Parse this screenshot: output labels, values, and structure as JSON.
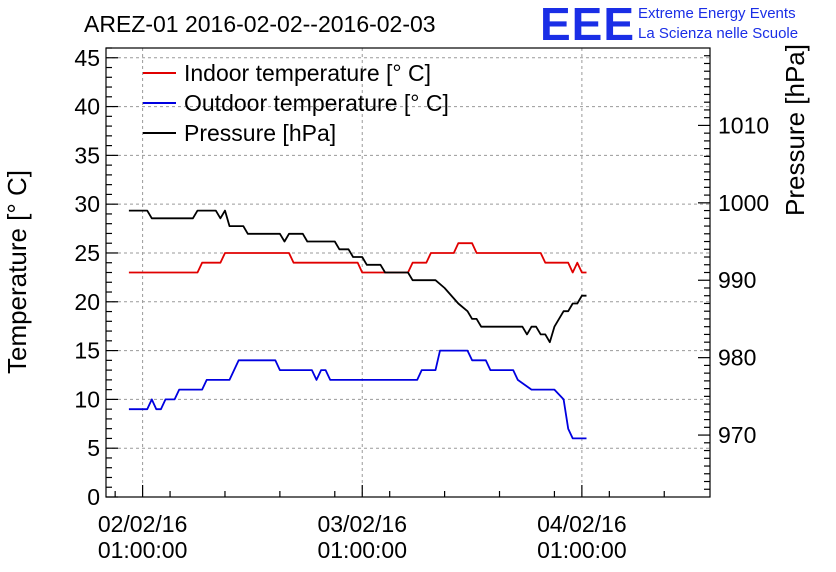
{
  "chart_data": {
    "type": "line",
    "title": "AREZ-01 2016-02-02--2016-02-03",
    "ylabel": "Temperature [° C]",
    "y2label": "Pressure [hPa]",
    "ylim": [
      0,
      46
    ],
    "y2lim": [
      962,
      1020
    ],
    "xlim_hours": [
      -4,
      62
    ],
    "y_ticks": [
      0,
      5,
      10,
      15,
      20,
      25,
      30,
      35,
      40,
      45
    ],
    "y2_ticks": [
      970,
      980,
      990,
      1000,
      1010
    ],
    "x_ticks": [
      {
        "hour": 0,
        "date": "02/02/16",
        "time": "01:00:00"
      },
      {
        "hour": 24,
        "date": "03/02/16",
        "time": "01:00:00"
      },
      {
        "hour": 48,
        "date": "04/02/16",
        "time": "01:00:00"
      }
    ],
    "grid": true,
    "legend_position": "top-left",
    "series": [
      {
        "name": "Indoor temperature [° C]",
        "color": "#e00000",
        "axis": "left",
        "points": [
          [
            -1.5,
            23
          ],
          [
            6,
            23
          ],
          [
            6.5,
            24
          ],
          [
            8.5,
            24
          ],
          [
            9,
            25
          ],
          [
            16,
            25
          ],
          [
            16.5,
            24
          ],
          [
            23.5,
            24
          ],
          [
            24,
            23
          ],
          [
            29,
            23
          ],
          [
            29.5,
            24
          ],
          [
            31,
            24
          ],
          [
            31.5,
            25
          ],
          [
            34,
            25
          ],
          [
            34.5,
            26
          ],
          [
            36,
            26
          ],
          [
            36.5,
            25
          ],
          [
            43.5,
            25
          ],
          [
            44,
            24
          ],
          [
            46.5,
            24
          ],
          [
            47,
            23
          ],
          [
            47.5,
            24
          ],
          [
            48,
            23
          ],
          [
            48.5,
            23
          ]
        ]
      },
      {
        "name": "Outdoor temperature [° C]",
        "color": "#0000e0",
        "axis": "left",
        "points": [
          [
            -1.5,
            9
          ],
          [
            0.5,
            9
          ],
          [
            1,
            10
          ],
          [
            1.5,
            9
          ],
          [
            2,
            9
          ],
          [
            2.5,
            10
          ],
          [
            3.5,
            10
          ],
          [
            4,
            11
          ],
          [
            6.5,
            11
          ],
          [
            7,
            12
          ],
          [
            9.5,
            12
          ],
          [
            10.5,
            14
          ],
          [
            14.5,
            14
          ],
          [
            15,
            13
          ],
          [
            18.5,
            13
          ],
          [
            19,
            12
          ],
          [
            19.5,
            13
          ],
          [
            20,
            13
          ],
          [
            20.5,
            12
          ],
          [
            30,
            12
          ],
          [
            30.5,
            13
          ],
          [
            32,
            13
          ],
          [
            32.5,
            15
          ],
          [
            35.5,
            15
          ],
          [
            36,
            14
          ],
          [
            37.5,
            14
          ],
          [
            38,
            13
          ],
          [
            40.5,
            13
          ],
          [
            41,
            12
          ],
          [
            42.5,
            11
          ],
          [
            45,
            11
          ],
          [
            46,
            10
          ],
          [
            46.5,
            7
          ],
          [
            47,
            6
          ],
          [
            48.5,
            6
          ]
        ]
      },
      {
        "name": "Pressure [hPa]",
        "color": "#000000",
        "axis": "right",
        "points": [
          [
            -1.5,
            999
          ],
          [
            0.5,
            999
          ],
          [
            1,
            998
          ],
          [
            5.5,
            998
          ],
          [
            6,
            999
          ],
          [
            8,
            999
          ],
          [
            8.5,
            998
          ],
          [
            9,
            999
          ],
          [
            9.5,
            997
          ],
          [
            11,
            997
          ],
          [
            11.5,
            996
          ],
          [
            15,
            996
          ],
          [
            15.5,
            995
          ],
          [
            16,
            996
          ],
          [
            17.5,
            996
          ],
          [
            18,
            995
          ],
          [
            21,
            995
          ],
          [
            21.5,
            994
          ],
          [
            22.5,
            994
          ],
          [
            23,
            993
          ],
          [
            24,
            993
          ],
          [
            24.5,
            992
          ],
          [
            26,
            992
          ],
          [
            26.5,
            991
          ],
          [
            29,
            991
          ],
          [
            29.5,
            990
          ],
          [
            32,
            990
          ],
          [
            33,
            989
          ],
          [
            34.5,
            987
          ],
          [
            35.5,
            986
          ],
          [
            36,
            985
          ],
          [
            36.5,
            985
          ],
          [
            37,
            984
          ],
          [
            41.5,
            984
          ],
          [
            42,
            983
          ],
          [
            42.5,
            984
          ],
          [
            43,
            984
          ],
          [
            43.5,
            983
          ],
          [
            44,
            983
          ],
          [
            44.5,
            982
          ],
          [
            45,
            984
          ],
          [
            45.5,
            985
          ],
          [
            46,
            986
          ],
          [
            46.5,
            986
          ],
          [
            47,
            987
          ],
          [
            47.5,
            987
          ],
          [
            48,
            988
          ],
          [
            48.5,
            988
          ]
        ]
      }
    ]
  },
  "logo": {
    "mark": "EEE",
    "line1": "Extreme Energy Events",
    "line2": "La Scienza nelle Scuole"
  }
}
